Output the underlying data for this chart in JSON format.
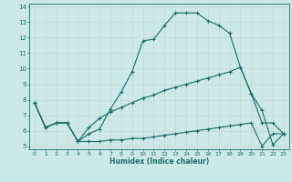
{
  "xlabel": "Humidex (Indice chaleur)",
  "bg_color": "#cce8e8",
  "grid_color": "#b8d8d8",
  "line_color": "#1a6b6b",
  "xlim": [
    -0.5,
    23.5
  ],
  "ylim": [
    4.8,
    14.2
  ],
  "xticks": [
    0,
    1,
    2,
    3,
    4,
    5,
    6,
    7,
    8,
    9,
    10,
    11,
    12,
    13,
    14,
    15,
    16,
    17,
    18,
    19,
    20,
    21,
    22,
    23
  ],
  "yticks": [
    5,
    6,
    7,
    8,
    9,
    10,
    11,
    12,
    13,
    14
  ],
  "line1_x": [
    0,
    1,
    2,
    3,
    4,
    5,
    6,
    7,
    8,
    9,
    10,
    11,
    12,
    13,
    14,
    15,
    16,
    17,
    18,
    19,
    20,
    21,
    22,
    23
  ],
  "line1_y": [
    7.8,
    6.2,
    6.5,
    6.5,
    5.3,
    5.8,
    6.1,
    7.4,
    8.5,
    9.8,
    11.8,
    11.9,
    12.8,
    13.6,
    13.6,
    13.6,
    13.1,
    12.8,
    12.3,
    10.1,
    8.4,
    7.3,
    5.1,
    5.8
  ],
  "line2_x": [
    0,
    1,
    2,
    3,
    4,
    5,
    6,
    7,
    8,
    9,
    10,
    11,
    12,
    13,
    14,
    15,
    16,
    17,
    18,
    19,
    20,
    21,
    22,
    23
  ],
  "line2_y": [
    7.8,
    6.2,
    6.5,
    6.5,
    5.3,
    6.2,
    6.8,
    7.2,
    7.5,
    7.8,
    8.1,
    8.3,
    8.6,
    8.8,
    9.0,
    9.2,
    9.4,
    9.6,
    9.8,
    10.1,
    8.4,
    6.5,
    6.5,
    5.8
  ],
  "line3_x": [
    0,
    1,
    2,
    3,
    4,
    5,
    6,
    7,
    8,
    9,
    10,
    11,
    12,
    13,
    14,
    15,
    16,
    17,
    18,
    19,
    20,
    21,
    22,
    23
  ],
  "line3_y": [
    7.8,
    6.2,
    6.5,
    6.5,
    5.3,
    5.3,
    5.3,
    5.4,
    5.4,
    5.5,
    5.5,
    5.6,
    5.7,
    5.8,
    5.9,
    6.0,
    6.1,
    6.2,
    6.3,
    6.4,
    6.5,
    5.0,
    5.8,
    5.8
  ]
}
